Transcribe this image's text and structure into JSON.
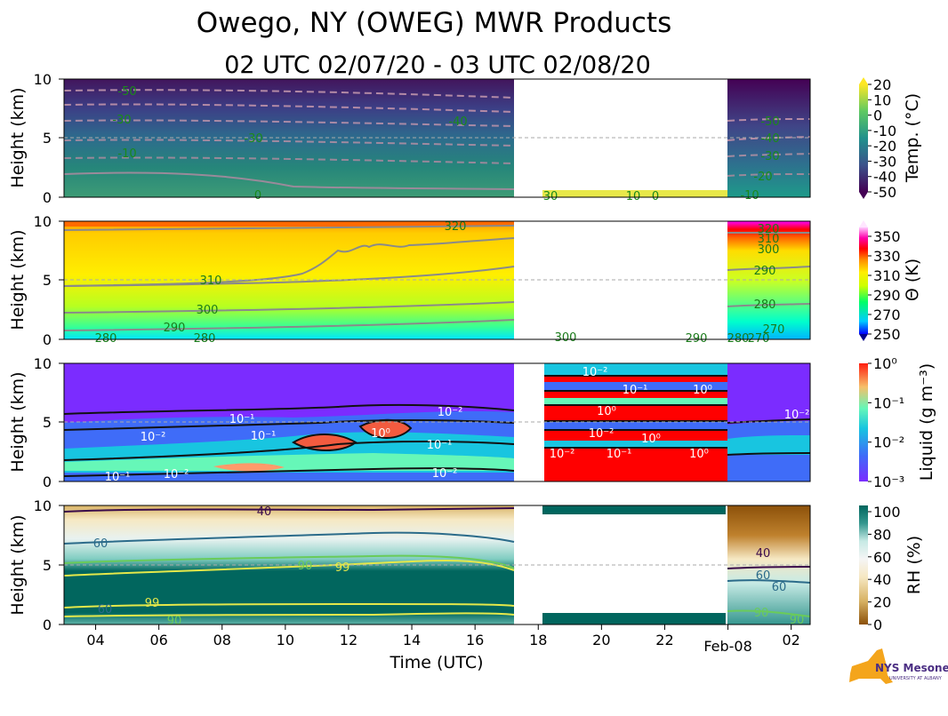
{
  "figure": {
    "title": "Owego, NY (OWEG) MWR Products",
    "subtitle": "02 UTC 02/07/20 - 03 UTC 02/08/20",
    "xlabel": "Time (UTC)",
    "logo": {
      "text": "NYS Mesonet",
      "subtext": "UNIVERSITY AT ALBANY"
    }
  },
  "chart_data": [
    {
      "type": "heatmap",
      "name": "temperature",
      "ylabel": "Height (km)",
      "ylim": [
        0,
        10
      ],
      "yticks": [
        "0",
        "5",
        "10"
      ],
      "x_range_hours": [
        3.0,
        26.6
      ],
      "xticks": [
        "04",
        "06",
        "08",
        "10",
        "12",
        "14",
        "16",
        "18",
        "20",
        "22",
        "Feb-08",
        "02"
      ],
      "missing_data_hours": [
        17.2,
        23.9
      ],
      "colorbar": {
        "label": "Temp. (°C)",
        "ticks": [
          "20",
          "10",
          "0",
          "-10",
          "-20",
          "-30",
          "-40",
          "-50"
        ],
        "range": [
          -50,
          20
        ]
      },
      "contour_labels": [
        "-50",
        "-30",
        "-10",
        "-30",
        "-40",
        "0",
        "30",
        "10",
        "0",
        "-50",
        "-40",
        "-30",
        "-20",
        "-10"
      ]
    },
    {
      "type": "heatmap",
      "name": "potential_temperature",
      "ylabel": "Height (km)",
      "ylim": [
        0,
        10
      ],
      "yticks": [
        "0",
        "5",
        "10"
      ],
      "missing_data_hours": [
        17.2,
        23.9
      ],
      "colorbar": {
        "label": "Θ (K)",
        "ticks": [
          "350",
          "330",
          "310",
          "290",
          "270",
          "250"
        ],
        "range": [
          250,
          360
        ]
      },
      "contour_labels": [
        "320",
        "310",
        "300",
        "290",
        "280",
        "280",
        "300",
        "290",
        "280",
        "270",
        "320",
        "310",
        "300",
        "290",
        "280",
        "270"
      ]
    },
    {
      "type": "heatmap",
      "name": "liquid_water",
      "ylabel": "Height (km)",
      "ylim": [
        0,
        10
      ],
      "yticks": [
        "0",
        "5",
        "10"
      ],
      "missing_data_hours": [
        17.2,
        18.2
      ],
      "colorbar": {
        "label": "Liquid (g m⁻³)",
        "ticks": [
          "10⁰",
          "10⁻¹",
          "10⁻²",
          "10⁻³"
        ],
        "scale": "log"
      },
      "contour_labels": [
        "10⁻¹",
        "10⁻²",
        "10⁻¹",
        "10⁰",
        "10⁻²",
        "10⁻¹",
        "10⁻¹",
        "10⁻²",
        "10⁻²",
        "10⁰",
        "10⁻²",
        "10⁰",
        "10⁻¹",
        "10⁻²",
        "10⁰",
        "10⁻²",
        "10⁻¹",
        "10⁰",
        "10⁻²"
      ]
    },
    {
      "type": "heatmap",
      "name": "relative_humidity",
      "ylabel": "Height (km)",
      "ylim": [
        0,
        10
      ],
      "yticks": [
        "0",
        "5",
        "10"
      ],
      "missing_data_hours": [
        17.2,
        23.9
      ],
      "colorbar": {
        "label": "RH (%)",
        "ticks": [
          "100",
          "80",
          "60",
          "40",
          "20",
          "0"
        ],
        "range": [
          0,
          100
        ]
      },
      "contour_labels": [
        "40",
        "60",
        "90",
        "99",
        "99",
        "60",
        "90",
        "40",
        "60",
        "60",
        "90",
        "90"
      ]
    }
  ]
}
